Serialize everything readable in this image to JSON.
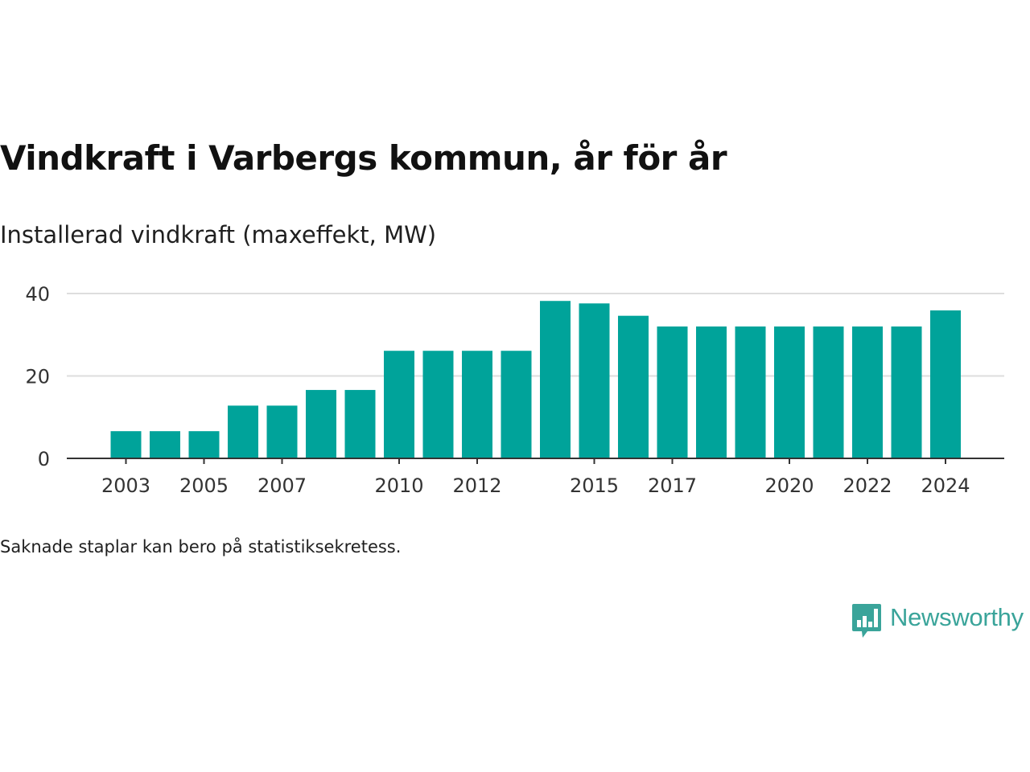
{
  "chart_data": {
    "type": "bar",
    "title": "Vindkraft i Varbergs kommun, år för år",
    "subtitle": "Installerad vindkraft (maxeffekt, MW)",
    "categories": [
      "2003",
      "2004",
      "2005",
      "2006",
      "2007",
      "2008",
      "2009",
      "2010",
      "2011",
      "2012",
      "2013",
      "2014",
      "2015",
      "2016",
      "2017",
      "2018",
      "2019",
      "2020",
      "2021",
      "2022",
      "2023",
      "2024"
    ],
    "values": [
      6.6,
      6.6,
      6.6,
      12.8,
      12.8,
      16.6,
      16.6,
      26.1,
      26.1,
      26.1,
      26.1,
      38.2,
      37.6,
      34.6,
      32.0,
      32.0,
      32.0,
      32.0,
      32.0,
      32.0,
      32.0,
      35.9
    ],
    "x_tick_labels": [
      "2003",
      "2005",
      "2007",
      "2010",
      "2012",
      "2015",
      "2017",
      "2020",
      "2022",
      "2024"
    ],
    "y_ticks": [
      0,
      20,
      40
    ],
    "ylim": [
      0,
      40
    ],
    "grid": true,
    "bar_color": "#00a39a",
    "gridline_color": "#dddddd",
    "axis_color": "#333333"
  },
  "footnote": "Saknade staplar kan bero på statistiksekretess.",
  "logo": {
    "text": "Newsworthy",
    "color": "#3aa49a"
  }
}
